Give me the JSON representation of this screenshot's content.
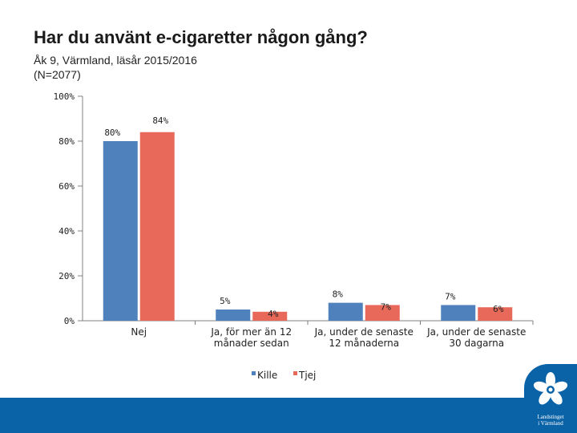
{
  "header": {
    "title": "Har du använt e-cigaretter någon gång?",
    "subtitle_line1": "Åk 9, Värmland, läsår 2015/2016",
    "subtitle_line2": "(N=2077)"
  },
  "chart_data": {
    "type": "bar",
    "categories": [
      [
        "Nej"
      ],
      [
        "Ja, för mer än 12",
        "månader sedan"
      ],
      [
        "Ja, under de senaste",
        "12 månaderna"
      ],
      [
        "Ja, under de senaste",
        "30 dagarna"
      ]
    ],
    "series": [
      {
        "name": "Kille",
        "values": [
          80,
          5,
          8,
          7
        ],
        "labels": [
          "80%",
          "5%",
          "8%",
          "7%"
        ],
        "color": "#4f81bd"
      },
      {
        "name": "Tjej",
        "values": [
          84,
          4,
          7,
          6
        ],
        "labels": [
          "84%",
          "4%",
          "7%",
          "6%"
        ],
        "color": "#e8695a"
      }
    ],
    "yticks": [
      "0%",
      "20%",
      "40%",
      "60%",
      "80%",
      "100%"
    ],
    "ylim": [
      0,
      100
    ],
    "legend": "bottom"
  },
  "logo": {
    "line1": "Landstinget",
    "line2": "i Värmland"
  }
}
